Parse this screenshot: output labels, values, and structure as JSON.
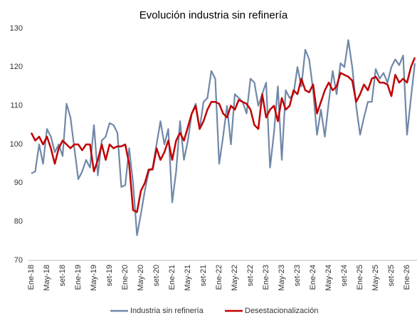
{
  "chart_data": {
    "type": "line",
    "title": "Evolución industria sin refinería",
    "categories": [
      "Ene-18",
      null,
      null,
      null,
      "May-18",
      null,
      null,
      null,
      "set-18",
      null,
      null,
      null,
      "Ene-19",
      null,
      null,
      null,
      "May-19",
      null,
      null,
      null,
      "set-19",
      null,
      null,
      null,
      "Ene-20",
      null,
      null,
      null,
      "May-20",
      null,
      null,
      null,
      "set-20",
      null,
      null,
      null,
      "Ene-21",
      null,
      null,
      null,
      "May-21",
      null,
      null,
      null,
      "set-21",
      null,
      null,
      null,
      "Ene-22",
      null,
      null,
      null,
      "May-22",
      null,
      null,
      null,
      "set-22",
      null,
      null,
      null,
      "Ene-23",
      null,
      null,
      null,
      "May-23",
      null,
      null,
      null,
      "set-23",
      null,
      null,
      null,
      "Ene-24",
      null,
      null,
      null,
      "May-24",
      null,
      null,
      null,
      "set-24",
      null,
      null,
      null,
      "Ene-25",
      null,
      null,
      null,
      "May-25",
      null,
      null,
      null,
      "set-25",
      null,
      null,
      null,
      "Ene-26",
      null,
      null
    ],
    "series": [
      {
        "name": "Industria sin refinería",
        "color": "#7088a8",
        "values": [
          92.5,
          93,
          100,
          95,
          104,
          102,
          98,
          100,
          97,
          110.5,
          107,
          99,
          91,
          93,
          96,
          94,
          105,
          92,
          101,
          102,
          105.5,
          105,
          103,
          89,
          89.5,
          99,
          90,
          76.5,
          82,
          88,
          93,
          94,
          100,
          106,
          100,
          104,
          85,
          93,
          106,
          96,
          101,
          108,
          110.5,
          104,
          111,
          112,
          119,
          117,
          95,
          102,
          110,
          100,
          113,
          112,
          111,
          108,
          117,
          116,
          110,
          113,
          116,
          94,
          103,
          115,
          96,
          114,
          112,
          113,
          120,
          115,
          124.5,
          122,
          114,
          102.5,
          109,
          102,
          111,
          119,
          113,
          121,
          120,
          127,
          120,
          110,
          102.5,
          107,
          111,
          111,
          119.5,
          117,
          118.5,
          116,
          120,
          122,
          120.5,
          123,
          102.5,
          112,
          121
        ]
      },
      {
        "name": "Desestacionalización",
        "color": "#c00000",
        "values": [
          103,
          101,
          102,
          100,
          102,
          99,
          95,
          99,
          101,
          100,
          99,
          100,
          100,
          98.5,
          100,
          100,
          93,
          96,
          100,
          96,
          100,
          99,
          99.5,
          99.5,
          100,
          95,
          83,
          82.5,
          88,
          90,
          93.5,
          93.5,
          99,
          96,
          98,
          101,
          96,
          101,
          103,
          101,
          104.5,
          108,
          110,
          104,
          106,
          109,
          111,
          111,
          110.5,
          108,
          107,
          110,
          109,
          111.5,
          111,
          110.5,
          109,
          105,
          104,
          113,
          107,
          109,
          110,
          106,
          112,
          109,
          110,
          114,
          113,
          117,
          114,
          113.5,
          115.5,
          108,
          111,
          114,
          116,
          114,
          115,
          118.5,
          118,
          117.5,
          116.5,
          111,
          113,
          115.5,
          114,
          117,
          117.5,
          116,
          116,
          115.5,
          112.5,
          118,
          116,
          117,
          116,
          120,
          122.5
        ]
      }
    ],
    "ylim": [
      70,
      130
    ],
    "yticks": [
      70,
      80,
      90,
      100,
      110,
      120,
      130
    ],
    "grid": false,
    "legend": "bottom"
  }
}
